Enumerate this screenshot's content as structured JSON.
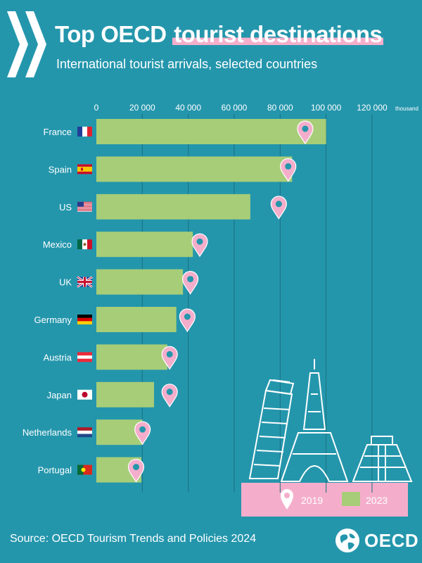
{
  "title_part1": "Top OECD",
  "title_part2": "tourist destinations",
  "subtitle": "International tourist arrivals, selected countries",
  "source": "Source: OECD Tourism Trends and Policies 2024",
  "logo_text": "OECD",
  "colors": {
    "background": "#2496ac",
    "bar_2023": "#a7cd78",
    "pin_2019": "#f4aecb",
    "legend_bg": "#f4aecb"
  },
  "chart_data": {
    "type": "bar",
    "orientation": "horizontal",
    "categories": [
      "France",
      "Spain",
      "US",
      "Mexico",
      "UK",
      "Germany",
      "Austria",
      "Japan",
      "Netherlands",
      "Portugal"
    ],
    "series": [
      {
        "name": "2023",
        "marker": "bar",
        "values": [
          100000,
          85200,
          67000,
          42000,
          37700,
          34800,
          30900,
          25100,
          20100,
          19600
        ]
      },
      {
        "name": "2019",
        "marker": "pin",
        "values": [
          90900,
          83500,
          79400,
          45000,
          40900,
          39600,
          31900,
          31900,
          20100,
          17300
        ]
      }
    ],
    "x_ticks": [
      "0",
      "20 000",
      "40 000",
      "60 000",
      "80 000",
      "100 000",
      "120 000"
    ],
    "x_unit": "thousand",
    "xlim": [
      0,
      120000
    ],
    "grid": true,
    "legend": [
      "2019",
      "2023"
    ],
    "legend_position": "bottom-right"
  }
}
